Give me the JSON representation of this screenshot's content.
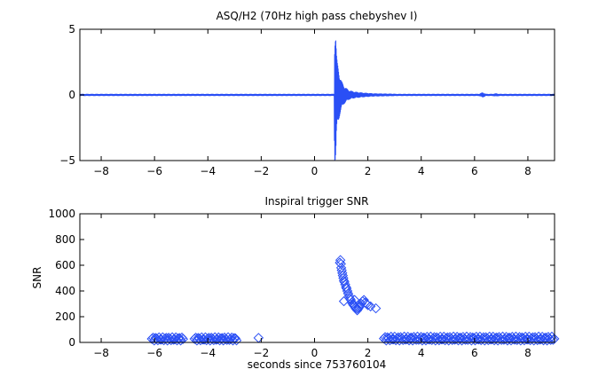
{
  "chart_data": [
    {
      "type": "line",
      "title": "ASQ/H2 (70Hz high pass chebyshev I)",
      "xlabel": "",
      "ylabel": "",
      "xlim": [
        -8.8,
        9.0
      ],
      "ylim": [
        -5,
        5
      ],
      "xticks": [
        -8,
        -6,
        -4,
        -2,
        0,
        2,
        4,
        6,
        8
      ],
      "yticks": [
        -5,
        0,
        5
      ],
      "grid": false,
      "color": "#2a4ff5",
      "series": [
        {
          "baseline_amplitude": 0.08,
          "burst": {
            "t0": 0.75,
            "x": [
              0.74,
              0.76,
              0.78,
              0.8,
              0.82,
              0.85,
              0.9,
              0.95,
              1.0,
              1.1,
              1.2,
              1.3,
              1.5,
              1.8,
              2.2,
              3.0
            ],
            "envelope": [
              3.0,
              5.0,
              5.0,
              4.6,
              3.2,
              2.5,
              2.0,
              1.5,
              1.1,
              0.7,
              0.5,
              0.35,
              0.25,
              0.18,
              0.12,
              0.09
            ]
          },
          "bumps": [
            {
              "x": 6.3,
              "amplitude": 0.2
            },
            {
              "x": 6.8,
              "amplitude": 0.12
            }
          ]
        }
      ]
    },
    {
      "type": "scatter",
      "title": "Inspiral trigger SNR",
      "xlabel": "seconds since 753760104",
      "ylabel": "SNR",
      "xlim": [
        -8.8,
        9.0
      ],
      "ylim": [
        0,
        1000
      ],
      "xticks": [
        -8,
        -6,
        -4,
        -2,
        0,
        2,
        4,
        6,
        8
      ],
      "yticks": [
        0,
        200,
        400,
        600,
        800,
        1000
      ],
      "grid": false,
      "marker": "diamond",
      "color": "#2a4ff5",
      "series": [
        {
          "clusters": [
            {
              "x_start": -6.1,
              "x_end": -4.9,
              "y_min": 15,
              "y_max": 40
            },
            {
              "x_start": -4.5,
              "x_end": -2.9,
              "y_min": 15,
              "y_max": 40
            },
            {
              "x_start": 2.6,
              "x_end": 9.0,
              "y_min": 15,
              "y_max": 45
            }
          ],
          "x": [
            -2.1,
            0.95,
            0.97,
            0.99,
            1.0,
            1.02,
            1.04,
            1.06,
            1.08,
            1.1,
            1.12,
            1.15,
            1.18,
            1.2,
            1.23,
            1.26,
            1.3,
            1.33,
            1.36,
            1.4,
            1.43,
            1.46,
            1.5,
            1.53,
            1.56,
            1.6,
            1.63,
            1.66,
            1.7,
            1.75,
            1.8,
            1.85,
            1.9,
            1.95,
            2.0,
            2.1,
            2.3,
            1.1,
            1.5
          ],
          "y": [
            35,
            620,
            640,
            610,
            580,
            560,
            540,
            520,
            500,
            480,
            470,
            450,
            430,
            420,
            400,
            380,
            360,
            340,
            330,
            310,
            300,
            290,
            280,
            270,
            260,
            250,
            260,
            270,
            280,
            300,
            320,
            330,
            310,
            300,
            290,
            280,
            265,
            320,
            330
          ]
        }
      ]
    }
  ]
}
